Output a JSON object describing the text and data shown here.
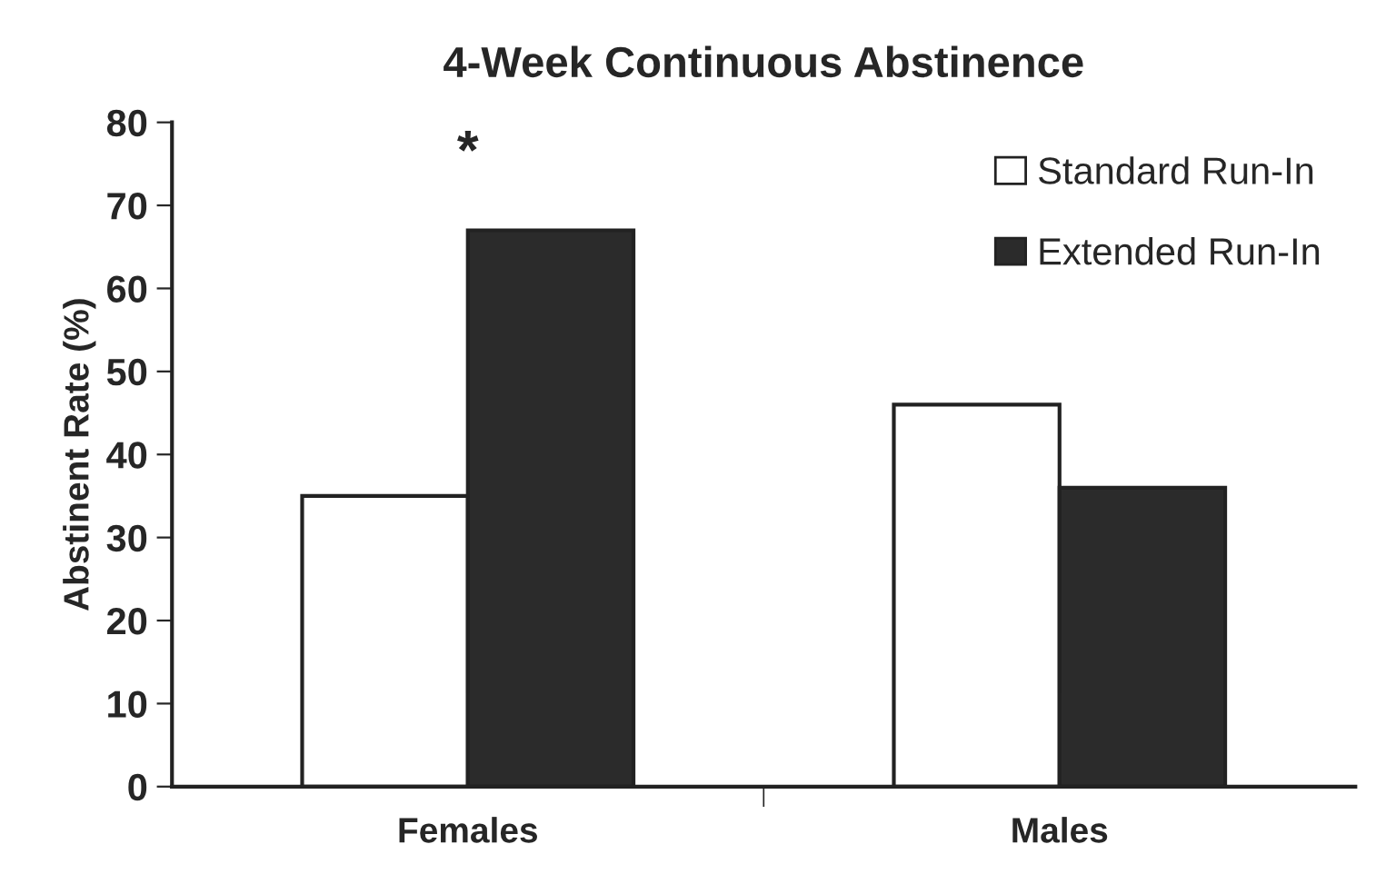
{
  "chart_data": {
    "type": "bar",
    "title": "4-Week Continuous Abstinence",
    "ylabel": "Abstinent Rate (%)",
    "categories": [
      "Females",
      "Males"
    ],
    "series": [
      {
        "name": "Standard Run-In",
        "color": "#ffffff",
        "values": [
          35,
          46
        ]
      },
      {
        "name": "Extended Run-In",
        "color": "#2b2b2b",
        "values": [
          67,
          36
        ]
      }
    ],
    "ylim": [
      0,
      80
    ],
    "yticks": [
      0,
      10,
      20,
      30,
      40,
      50,
      60,
      70,
      80
    ],
    "grid": false,
    "legend": "top right",
    "annotations": [
      "*"
    ]
  }
}
